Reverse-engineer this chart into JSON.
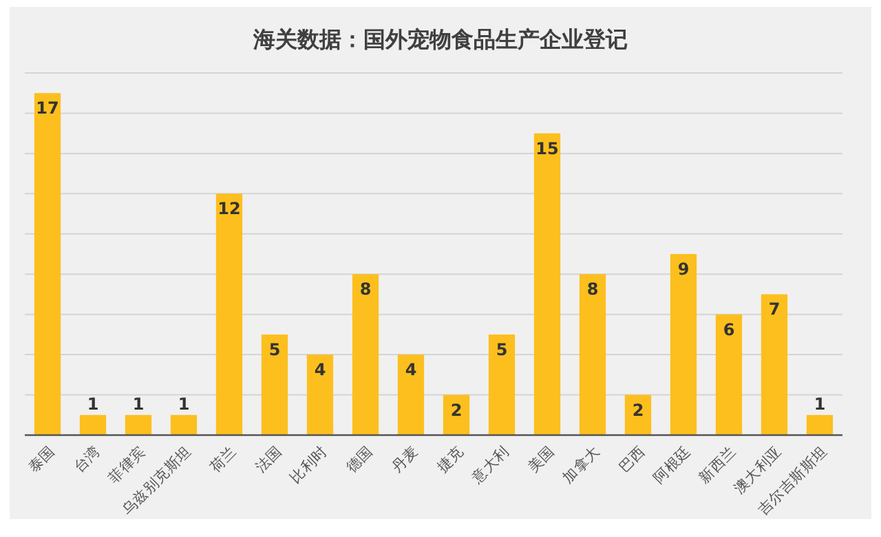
{
  "chart_data": {
    "type": "bar",
    "title": "海关数据：国外宠物食品生产企业登记",
    "categories": [
      "泰国",
      "台湾",
      "菲律宾",
      "乌兹别克斯坦",
      "荷兰",
      "法国",
      "比利时",
      "德国",
      "丹麦",
      "捷克",
      "意大利",
      "美国",
      "加拿大",
      "巴西",
      "阿根廷",
      "新西兰",
      "澳大利亚",
      "吉尔吉斯斯坦"
    ],
    "values": [
      17,
      1,
      1,
      1,
      12,
      5,
      4,
      8,
      4,
      2,
      5,
      15,
      8,
      2,
      9,
      6,
      7,
      1
    ],
    "color": "#fcbf1e",
    "ylim": [
      0,
      18
    ],
    "yticks": [
      {
        "value": 0,
        "label": null
      },
      {
        "value": 2,
        "label": null
      },
      {
        "value": 4,
        "label": null
      },
      {
        "value": 6,
        "label": null
      },
      {
        "value": 8,
        "label": null
      },
      {
        "value": 10,
        "label": null
      },
      {
        "value": 12,
        "label": null
      },
      {
        "value": 14,
        "label": null
      },
      {
        "value": 16,
        "label": null
      },
      {
        "value": 18,
        "label": null
      }
    ],
    "grid": "y",
    "tick_labels": "x",
    "data_labels": true
  }
}
